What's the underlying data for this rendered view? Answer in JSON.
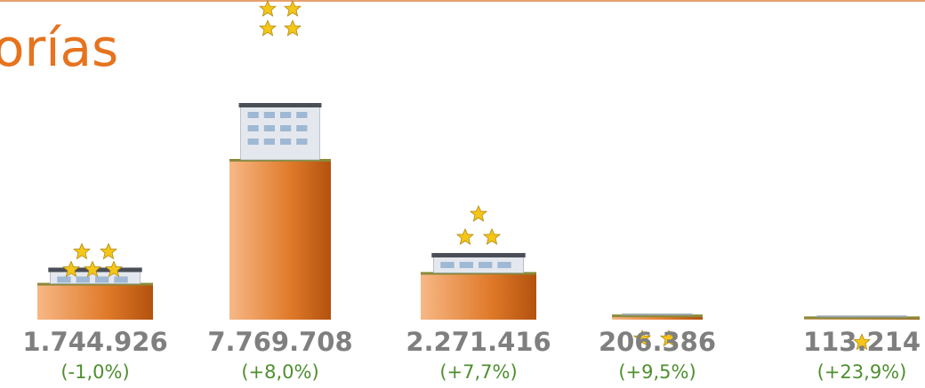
{
  "chart_data": {
    "type": "bar",
    "title": "orías",
    "categories": [
      null,
      null,
      null,
      null,
      null
    ],
    "values": [
      1744926,
      7769708,
      2271416,
      206386,
      113214
    ],
    "value_labels": [
      "1.744.926",
      "7.769.708",
      "2.271.416",
      "206.386",
      "113.214"
    ],
    "changes": [
      -1.0,
      8.0,
      7.7,
      9.5,
      23.9
    ],
    "change_labels": [
      "(-1,0%)",
      "(+8,0%)",
      "(+7,7%)",
      "(+9,5%)",
      "(+23,9%)"
    ],
    "color": "#e07a2a"
  }
}
